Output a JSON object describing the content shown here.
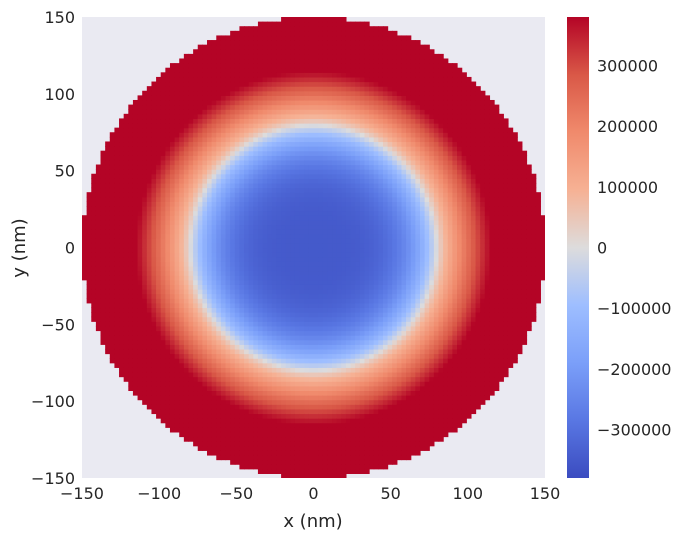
{
  "chart_data": {
    "type": "heatmap",
    "title": "",
    "xlabel": "x (nm)",
    "ylabel": "y (nm)",
    "xlim": [
      -150,
      150
    ],
    "ylim": [
      -150,
      150
    ],
    "x_ticks": [
      -150,
      -100,
      -50,
      0,
      50,
      100,
      150
    ],
    "y_ticks": [
      -150,
      -100,
      -50,
      0,
      50,
      100,
      150
    ],
    "grid": false,
    "background_color": "#eaeaf2",
    "field": {
      "shape": "disk",
      "center": [
        0,
        0
      ],
      "radius": 150,
      "min_value": -380000,
      "max_value": 380000,
      "value_at_center": -350000,
      "zero_crossing_radius": 80,
      "saturates_at_radius": 115
    },
    "colorbar": {
      "colormap": "coolwarm",
      "range": [
        -380000,
        380000
      ],
      "ticks": [
        -300000,
        -200000,
        -100000,
        0,
        100000,
        200000,
        300000
      ],
      "tick_labels": [
        "−300000",
        "−200000",
        "−100000",
        "0",
        "100000",
        "200000",
        "300000"
      ]
    }
  }
}
